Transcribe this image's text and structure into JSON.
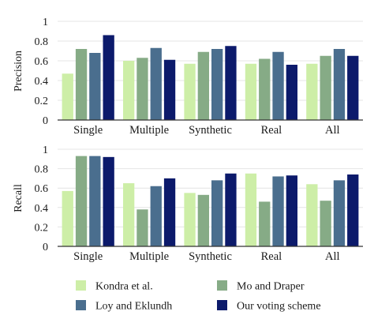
{
  "chart_data": [
    {
      "type": "bar",
      "ylabel": "Precision",
      "ylim": [
        0,
        1
      ],
      "yticks": [
        "0",
        "0.2",
        "0.4",
        "0.6",
        "0.8",
        "1"
      ],
      "grid": true,
      "categories": [
        "Single",
        "Multiple",
        "Synthetic",
        "Real",
        "All"
      ],
      "series": [
        {
          "name": "Kondra et al.",
          "values": [
            0.47,
            0.6,
            0.57,
            0.57,
            0.57
          ]
        },
        {
          "name": "Mo and Draper",
          "values": [
            0.72,
            0.63,
            0.69,
            0.62,
            0.65
          ]
        },
        {
          "name": "Loy and Eklundh",
          "values": [
            0.68,
            0.73,
            0.72,
            0.69,
            0.72
          ]
        },
        {
          "name": "Our voting scheme",
          "values": [
            0.86,
            0.61,
            0.75,
            0.56,
            0.65
          ]
        }
      ]
    },
    {
      "type": "bar",
      "ylabel": "Recall",
      "ylim": [
        0,
        1
      ],
      "yticks": [
        "0",
        "0.2",
        "0.4",
        "0.6",
        "0.8",
        "1"
      ],
      "grid": true,
      "categories": [
        "Single",
        "Multiple",
        "Synthetic",
        "Real",
        "All"
      ],
      "series": [
        {
          "name": "Kondra et al.",
          "values": [
            0.57,
            0.65,
            0.55,
            0.75,
            0.64
          ]
        },
        {
          "name": "Mo and Draper",
          "values": [
            0.93,
            0.38,
            0.53,
            0.46,
            0.47
          ]
        },
        {
          "name": "Loy and Eklundh",
          "values": [
            0.93,
            0.62,
            0.68,
            0.72,
            0.68
          ]
        },
        {
          "name": "Our voting scheme",
          "values": [
            0.92,
            0.7,
            0.75,
            0.73,
            0.74
          ]
        }
      ]
    }
  ],
  "legend": {
    "placement": "bottom",
    "items": [
      {
        "label": "Kondra et al.",
        "color": "#cdeea7"
      },
      {
        "label": "Mo and Draper",
        "color": "#86ab86"
      },
      {
        "label": "Loy and Eklundh",
        "color": "#4a6e8e"
      },
      {
        "label": "Our voting scheme",
        "color": "#0c1a6b"
      }
    ]
  }
}
